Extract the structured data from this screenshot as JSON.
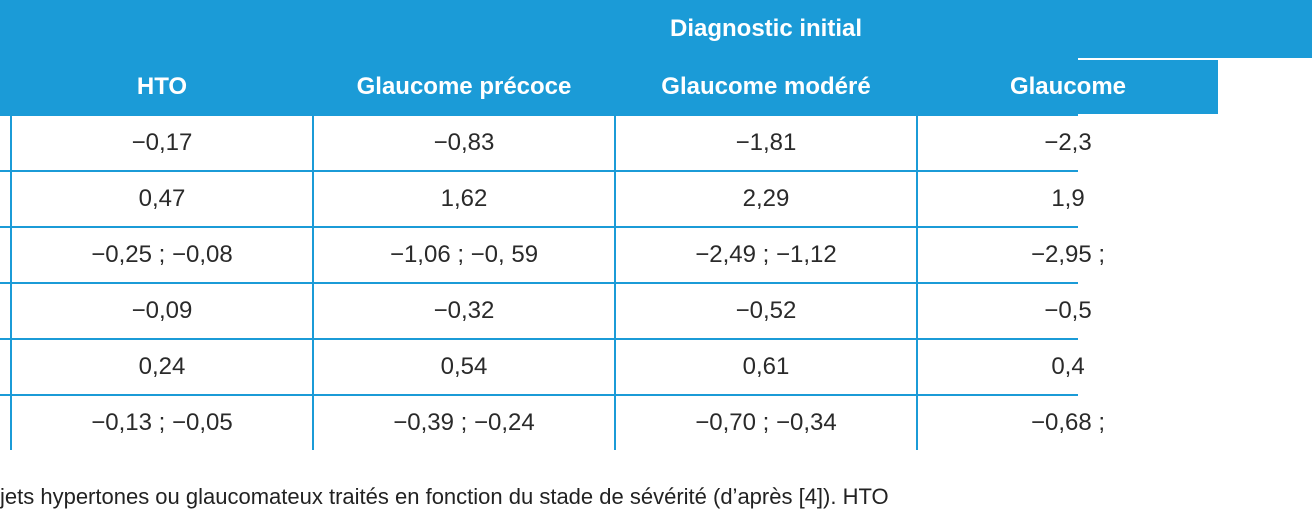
{
  "table": {
    "group_header": "Diagnostic initial",
    "columns": [
      "HTO",
      "Glaucome précoce",
      "Glaucome modéré",
      "Glaucome"
    ],
    "rows": [
      [
        "−0,17",
        "−0,83",
        "−1,81",
        "−2,3"
      ],
      [
        "0,47",
        "1,62",
        "2,29",
        "1,9"
      ],
      [
        "−0,25 ; −0,08",
        "−1,06 ; −0, 59",
        "−2,49 ; −1,12",
        "−2,95 ;"
      ],
      [
        "−0,09",
        "−0,32",
        "−0,52",
        "−0,5"
      ],
      [
        "0,24",
        "0,54",
        "0,61",
        "0,4"
      ],
      [
        "−0,13 ; −0,05",
        "−0,39 ; −0,24",
        "−0,70 ; −0,34",
        "−0,68 ;"
      ]
    ]
  },
  "caption": "jets hypertones ou glaucomateux traités en fonction du stade de sévérité (d’après [4]). HTO"
}
